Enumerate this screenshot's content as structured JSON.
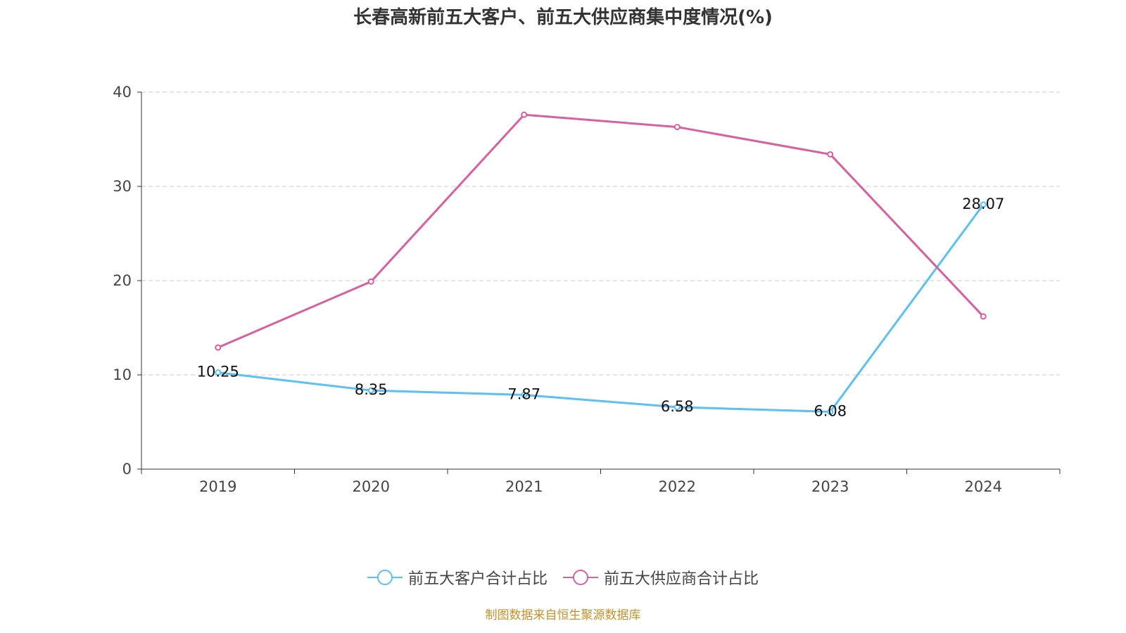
{
  "chart_data": {
    "type": "line",
    "title": "长春高新前五大客户、前五大供应商集中度情况(%)",
    "categories": [
      "2019",
      "2020",
      "2021",
      "2022",
      "2023",
      "2024"
    ],
    "ylim": [
      0,
      40
    ],
    "yticks": [
      0,
      10,
      20,
      30,
      40
    ],
    "grid": true,
    "legend_position": "bottom",
    "series": [
      {
        "name": "前五大客户合计占比",
        "color": "#5bc0f5",
        "values": [
          10.25,
          8.35,
          7.87,
          6.58,
          6.08,
          28.07
        ],
        "labels": [
          "10.25",
          "8.35",
          "7.87",
          "6.58",
          "6.08",
          "28.07"
        ]
      },
      {
        "name": "前五大供应商合计占比",
        "color": "#d9609f",
        "values": [
          12.9,
          19.9,
          37.6,
          36.3,
          33.4,
          16.2
        ]
      }
    ]
  },
  "source": "制图数据来自恒生聚源数据库"
}
